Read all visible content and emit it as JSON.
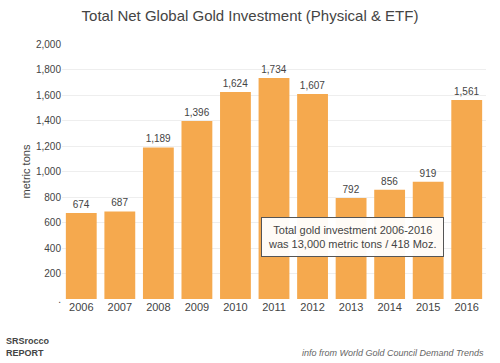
{
  "chart_data": {
    "type": "bar",
    "title": "Total Net Global Gold Investment (Physical & ETF)",
    "ylabel": "metric tons",
    "categories": [
      "2006",
      "2007",
      "2008",
      "2009",
      "2010",
      "2011",
      "2012",
      "2013",
      "2014",
      "2015",
      "2016"
    ],
    "values": [
      674,
      687,
      1189,
      1396,
      1624,
      1734,
      1607,
      792,
      856,
      919,
      1561
    ],
    "value_labels": [
      "674",
      "687",
      "1,189",
      "1,396",
      "1,624",
      "1,734",
      "1,607",
      "792",
      "856",
      "919",
      "1,561"
    ],
    "data_labels": true,
    "color": "#F5A94E",
    "ylim": [
      0,
      2000
    ],
    "yticks": [
      {
        "value": 0,
        "label": "."
      },
      200,
      400,
      600,
      800,
      {
        "value": 1000,
        "label": "1,000"
      },
      {
        "value": 1200,
        "label": "1,200"
      },
      {
        "value": 1400,
        "label": "1,400"
      },
      {
        "value": 1600,
        "label": "1,600"
      },
      {
        "value": 1800,
        "label": "1,800"
      },
      {
        "value": 2000,
        "label": "2,000"
      }
    ],
    "grid": true,
    "annotation": "Total gold investment 2006-2016\nwas 13,000 metric tons / 418 Moz.",
    "footer": "info from World Gold Council Demand Trends",
    "logo": [
      "SRSrocco",
      "REPORT"
    ]
  }
}
